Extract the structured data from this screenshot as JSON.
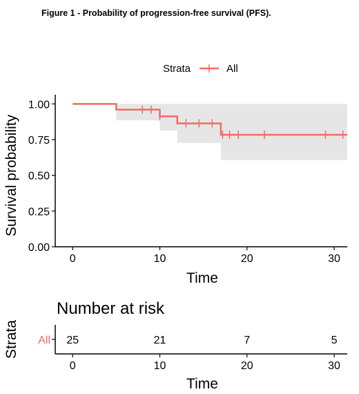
{
  "figure_caption": "Figure 1 - Probability of progression-free survival (PFS).",
  "colors": {
    "series": "#EE6C64",
    "ci": "#E6E6E6",
    "axis": "#000000",
    "risk_label": "#EE6C64"
  },
  "chart_data": [
    {
      "type": "line",
      "subtype": "kaplan-meier",
      "legend": {
        "title": "Strata",
        "entries": [
          "All"
        ],
        "position": "top"
      },
      "xlabel": "Time",
      "ylabel": "Survival probability",
      "xlim": [
        -2,
        31.5
      ],
      "ylim": [
        0,
        1.05
      ],
      "x_ticks": [
        0,
        10,
        20,
        30
      ],
      "x_tick_labels": [
        "0",
        "10",
        "20",
        "30"
      ],
      "y_ticks": [
        0,
        0.25,
        0.5,
        0.75,
        1.0
      ],
      "y_tick_labels": [
        "0.00",
        "0.25",
        "0.50",
        "0.75",
        "1.00"
      ],
      "grid": false,
      "series": [
        {
          "name": "All",
          "step_times": [
            0,
            5,
            10,
            12,
            17,
            31.5
          ],
          "survival": [
            1.0,
            0.96,
            0.913,
            0.864,
            0.784,
            0.784
          ],
          "ci_lower": [
            1.0,
            0.885,
            0.812,
            0.727,
            0.607,
            0.607
          ],
          "ci_upper": [
            1.0,
            1.0,
            1.0,
            1.0,
            1.0,
            1.0
          ],
          "censor_times": [
            8,
            9,
            10,
            13,
            14.5,
            16,
            17.2,
            18,
            19,
            22,
            29,
            31
          ]
        }
      ]
    },
    {
      "type": "table",
      "title": "Number at risk",
      "ylabel": "Strata",
      "xlabel": "Time",
      "xlim": [
        -2,
        31.5
      ],
      "x_ticks": [
        0,
        10,
        20,
        30
      ],
      "x_tick_labels": [
        "0",
        "10",
        "20",
        "30"
      ],
      "rows": [
        {
          "strata": "All",
          "times": [
            0,
            10,
            20,
            30
          ],
          "values": [
            "25",
            "21",
            "7",
            "5"
          ]
        }
      ]
    }
  ]
}
